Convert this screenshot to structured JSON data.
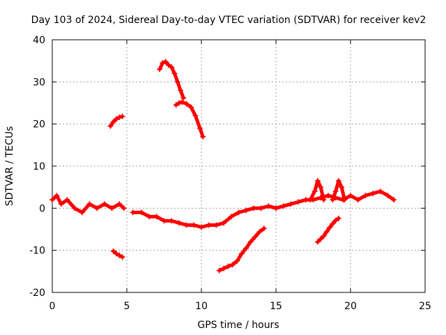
{
  "chart_data": {
    "type": "scatter",
    "title": "Day 103 of 2024, Sidereal Day-to-day VTEC variation (SDTVAR) for receiver kev2",
    "xlabel": "GPS time / hours",
    "ylabel": "SDTVAR / TECUs",
    "xlim": [
      0,
      25
    ],
    "ylim": [
      -20,
      40
    ],
    "xticks": [
      0,
      5,
      10,
      15,
      20,
      25
    ],
    "yticks": [
      -20,
      -10,
      0,
      10,
      20,
      30,
      40
    ],
    "xtick_labels": [
      "0",
      "5",
      "10",
      "15",
      "20",
      "25"
    ],
    "ytick_labels": [
      "-20",
      "-10",
      "0",
      "10",
      "20",
      "30",
      "40"
    ],
    "grid": true,
    "marker_color": "#ff0000",
    "series": [
      {
        "name": "main-trace-1",
        "x": [
          0,
          0.3,
          0.6,
          1.0,
          1.5,
          2.0,
          2.5,
          3.0,
          3.5,
          4.0,
          4.5,
          4.8
        ],
        "y": [
          2,
          3,
          1,
          2,
          0,
          -1,
          1,
          0,
          1,
          0,
          1,
          0
        ]
      },
      {
        "name": "main-trace-2",
        "x": [
          5.4,
          6.0,
          6.5,
          7.0,
          7.5,
          8.0,
          8.5,
          9.0,
          9.5,
          10.0,
          10.5,
          11.0,
          11.5,
          12.0,
          12.5,
          13.0,
          13.5,
          14.0,
          14.5,
          15.0,
          15.5,
          16.0,
          16.5,
          17.0,
          17.5,
          18.0,
          18.5,
          19.0,
          19.5,
          20.0,
          20.5,
          21.0,
          21.5,
          22.0,
          22.5,
          22.9
        ],
        "y": [
          -1,
          -1,
          -2,
          -2,
          -3,
          -3,
          -3.5,
          -4,
          -4,
          -4.5,
          -4,
          -4,
          -3.5,
          -2,
          -1,
          -0.5,
          0,
          0,
          0.5,
          0,
          0.5,
          1,
          1.5,
          2,
          2,
          2.5,
          3,
          2.5,
          2,
          3,
          2,
          3,
          3.5,
          4,
          3,
          2
        ]
      },
      {
        "name": "spike-17.8",
        "x": [
          17.3,
          17.6,
          17.8,
          18.0,
          18.2
        ],
        "y": [
          2,
          4,
          6.5,
          5,
          2
        ]
      },
      {
        "name": "spike-19.2",
        "x": [
          18.8,
          19.0,
          19.2,
          19.4,
          19.6
        ],
        "y": [
          2,
          4,
          6.5,
          5,
          2
        ]
      },
      {
        "name": "segment-4h-high",
        "x": [
          3.9,
          4.1,
          4.3,
          4.5,
          4.7
        ],
        "y": [
          19.5,
          20.5,
          21.2,
          21.6,
          21.8
        ]
      },
      {
        "name": "segment-4h-low",
        "x": [
          4.1,
          4.3,
          4.5,
          4.7
        ],
        "y": [
          -10.2,
          -10.8,
          -11.2,
          -11.6
        ]
      },
      {
        "name": "segment-7h",
        "x": [
          7.2,
          7.4,
          7.6,
          7.8,
          8.0,
          8.2,
          8.4,
          8.6,
          8.8
        ],
        "y": [
          33,
          34.5,
          34.8,
          34,
          33.5,
          32,
          30,
          28,
          26.2
        ]
      },
      {
        "name": "segment-8h",
        "x": [
          8.3,
          8.5,
          8.7,
          9.0,
          9.3,
          9.6,
          9.9,
          10.1
        ],
        "y": [
          24.5,
          25,
          25.2,
          24.8,
          24,
          22,
          19,
          17
        ]
      },
      {
        "name": "segment-11h",
        "x": [
          11.2,
          11.5,
          11.8,
          12.1,
          12.4,
          12.7,
          13.0,
          13.3,
          13.6,
          13.9,
          14.2
        ],
        "y": [
          -14.8,
          -14.3,
          -13.8,
          -13.4,
          -12.5,
          -10.8,
          -9.5,
          -8,
          -6.8,
          -5.6,
          -4.8
        ]
      },
      {
        "name": "segment-18h",
        "x": [
          17.8,
          18.0,
          18.2,
          18.4,
          18.6,
          18.8,
          19.0,
          19.2
        ],
        "y": [
          -8,
          -7.3,
          -6.6,
          -5.6,
          -4.6,
          -3.7,
          -2.9,
          -2.4
        ]
      }
    ]
  }
}
